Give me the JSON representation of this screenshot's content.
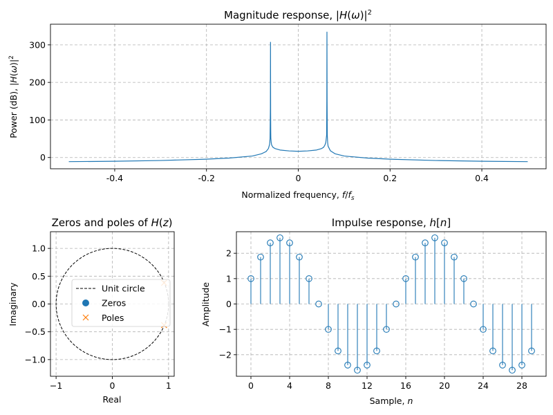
{
  "chart_data": [
    {
      "id": "magnitude",
      "type": "line",
      "title": "Magnitude response, |H(ω)|²",
      "xlabel": "Normalized frequency, f/fs",
      "ylabel": "Power (dB), |H(ω)|²",
      "xlim": [
        -0.54,
        0.54
      ],
      "ylim": [
        -30,
        355
      ],
      "xticks": [
        -0.4,
        -0.2,
        0,
        0.2,
        0.4
      ],
      "xtick_labels": [
        "-0.4",
        "-0.2",
        "0",
        "0.2",
        "0.4"
      ],
      "yticks": [
        0,
        100,
        200,
        300
      ],
      "ytick_labels": [
        "0",
        "100",
        "200",
        "300"
      ],
      "grid": true,
      "color": "#1f77b4",
      "x": [
        -0.5,
        -0.4,
        -0.3,
        -0.2,
        -0.15,
        -0.1,
        -0.08,
        -0.07,
        -0.065,
        -0.0625,
        -0.0615,
        -0.0608,
        -0.0605,
        -0.0602,
        -0.06,
        -0.0598,
        -0.059,
        -0.058,
        -0.055,
        -0.05,
        -0.04,
        -0.02,
        0,
        0.02,
        0.04,
        0.05,
        0.055,
        0.058,
        0.06,
        0.0618,
        0.0622,
        0.0625,
        0.0628,
        0.0632,
        0.064,
        0.065,
        0.07,
        0.08,
        0.1,
        0.15,
        0.2,
        0.3,
        0.4,
        0.5
      ],
      "y": [
        -11,
        -10,
        -8,
        -4.5,
        -1.5,
        4,
        10,
        16,
        24,
        35,
        50,
        130,
        307,
        120,
        70,
        52,
        40,
        33,
        27,
        23.5,
        20,
        17.5,
        16.5,
        17.5,
        20,
        23.5,
        27,
        33,
        40,
        60,
        150,
        334,
        150,
        60,
        40,
        30,
        18,
        10,
        4,
        -1.5,
        -4.5,
        -8,
        -10,
        -11
      ]
    },
    {
      "id": "zeros-poles",
      "type": "scatter",
      "title": "Zeros and poles of H(z)",
      "xlabel": "Real",
      "ylabel": "Imaginary",
      "xlim": [
        -1.1,
        1.1
      ],
      "ylim": [
        -1.3,
        1.3
      ],
      "xticks": [
        -1,
        0,
        1
      ],
      "xtick_labels": [
        "−1",
        "0",
        "1"
      ],
      "yticks": [
        -1,
        -0.5,
        0,
        0.5,
        1
      ],
      "ytick_labels": [
        "−1.0",
        "−0.5",
        "0.0",
        "0.5",
        "1.0"
      ],
      "grid": true,
      "legend": [
        "Unit circle",
        "Zeros",
        "Poles"
      ],
      "legend_position": "center",
      "zeros": [],
      "poles": [
        [
          0.92,
          0.38
        ],
        [
          0.92,
          -0.38
        ]
      ],
      "pole_color": "#ff7f0e",
      "zero_color": "#1f77b4"
    },
    {
      "id": "impulse",
      "type": "stem",
      "title": "Impulse response, h[n]",
      "xlabel": "Sample, n",
      "ylabel": "Amplitude",
      "xlim": [
        -1.5,
        30.5
      ],
      "ylim": [
        -2.85,
        2.85
      ],
      "xticks": [
        0,
        4,
        8,
        12,
        16,
        20,
        24,
        28
      ],
      "xtick_labels": [
        "0",
        "4",
        "8",
        "12",
        "16",
        "20",
        "24",
        "28"
      ],
      "yticks": [
        -2,
        -1,
        0,
        1,
        2
      ],
      "ytick_labels": [
        "−2",
        "−1",
        "0",
        "1",
        "2"
      ],
      "grid": true,
      "color": "#1f77b4",
      "n": [
        0,
        1,
        2,
        3,
        4,
        5,
        6,
        7,
        8,
        9,
        10,
        11,
        12,
        13,
        14,
        15,
        16,
        17,
        18,
        19,
        20,
        21,
        22,
        23,
        24,
        25,
        26,
        27,
        28,
        29
      ],
      "values": [
        1,
        1.85,
        2.41,
        2.61,
        2.41,
        1.85,
        1,
        0,
        -1,
        -1.85,
        -2.41,
        -2.61,
        -2.41,
        -1.85,
        -1,
        0,
        1,
        1.85,
        2.41,
        2.61,
        2.41,
        1.85,
        1,
        0,
        -1,
        -1.85,
        -2.41,
        -2.61,
        -2.41,
        -1.85
      ]
    }
  ]
}
